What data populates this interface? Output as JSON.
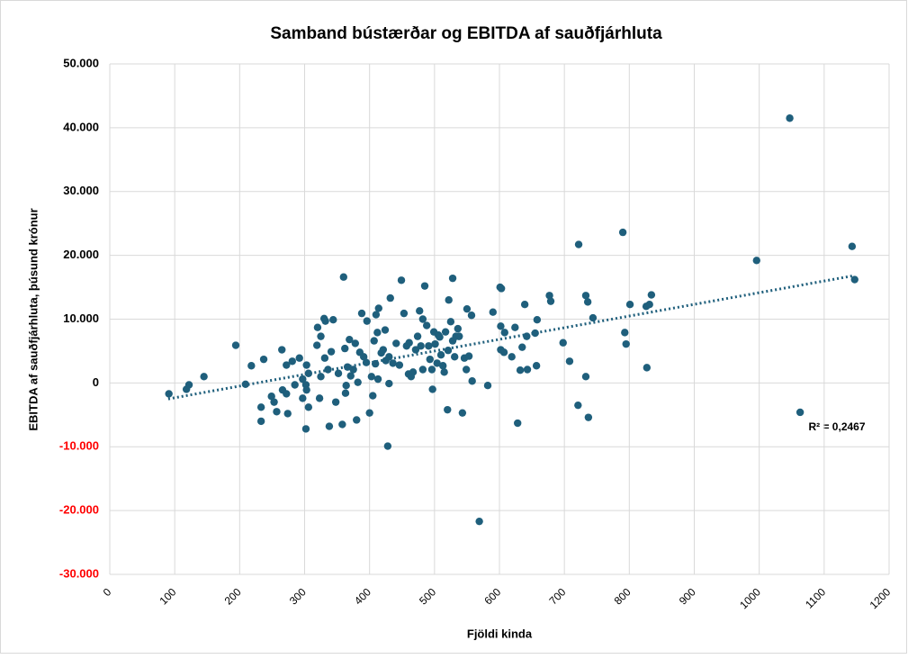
{
  "chart_data": {
    "type": "scatter",
    "title": "Samband bústærðar og EBITDA af sauðfjárhluta",
    "x_label": "Fjöldi kinda",
    "y_label": "EBITDA af sauðfjárhluta, þúsund krónur",
    "annotation": "R² = 0,2467",
    "color": "#1f5f7c",
    "negative_tick_color": "#ff0000",
    "grid": true,
    "xlim": [
      0,
      1200
    ],
    "xticks": [
      0,
      100,
      200,
      300,
      400,
      500,
      600,
      700,
      800,
      900,
      1000,
      1100,
      1200
    ],
    "ylim": [
      -30000,
      50000
    ],
    "yticks": [
      {
        "value": -30000,
        "label": "-30.000"
      },
      {
        "value": -20000,
        "label": "-20.000"
      },
      {
        "value": -10000,
        "label": "-10.000"
      },
      {
        "value": 0,
        "label": "0"
      },
      {
        "value": 10000,
        "label": "10.000"
      },
      {
        "value": 20000,
        "label": "20.000"
      },
      {
        "value": 30000,
        "label": "30.000"
      },
      {
        "value": 40000,
        "label": "40.000"
      },
      {
        "value": 50000,
        "label": "50.000"
      }
    ],
    "trendline": {
      "x": [
        90,
        1145
      ],
      "y": [
        -2500,
        16800
      ]
    },
    "x": [
      91,
      118,
      122,
      145,
      194,
      209,
      218,
      237,
      233,
      233,
      249,
      253,
      257,
      265,
      266,
      272,
      274,
      272,
      281,
      285,
      292,
      297,
      297,
      302,
      302,
      303,
      306,
      306,
      303,
      319,
      320,
      323,
      325,
      325,
      330,
      331,
      332,
      336,
      338,
      341,
      344,
      348,
      352,
      358,
      360,
      362,
      363,
      364,
      366,
      369,
      371,
      375,
      378,
      380,
      382,
      385,
      388,
      391,
      395,
      396,
      400,
      403,
      405,
      407,
      409,
      410,
      412,
      413,
      414,
      418,
      421,
      424,
      425,
      430,
      428,
      430,
      432,
      436,
      441,
      446,
      449,
      453,
      457,
      460,
      461,
      464,
      467,
      471,
      474,
      477,
      479,
      482,
      485,
      488,
      491,
      493,
      496,
      497,
      499,
      501,
      504,
      506,
      508,
      510,
      513,
      515,
      517,
      520,
      521,
      522,
      525,
      528,
      528,
      531,
      533,
      536,
      538,
      543,
      546,
      549,
      550,
      553,
      557,
      558,
      569,
      582,
      590,
      601,
      603,
      602,
      602,
      607,
      608,
      619,
      624,
      628,
      632,
      635,
      639,
      642,
      643,
      655,
      658,
      657,
      677,
      679,
      698,
      708,
      722,
      721,
      733,
      736,
      733,
      737,
      744,
      790,
      793,
      795,
      801,
      827,
      826,
      831,
      834,
      996,
      1047,
      1063,
      1143,
      1147,
      482
    ],
    "y": [
      -1700,
      -1000,
      -300,
      1000,
      5900,
      -200,
      2700,
      3700,
      -3800,
      -6000,
      -2100,
      -3000,
      -4500,
      5200,
      -1100,
      -1700,
      -4800,
      2800,
      3400,
      -300,
      3900,
      600,
      -2400,
      -300,
      -7200,
      -1100,
      -3800,
      1500,
      2800,
      5900,
      8700,
      -2400,
      1000,
      7300,
      10100,
      3900,
      9700,
      2100,
      -6800,
      4900,
      9900,
      -3000,
      1500,
      -6500,
      16600,
      5400,
      -1600,
      -400,
      2500,
      6800,
      1100,
      2100,
      6200,
      -5800,
      100,
      4800,
      10900,
      4100,
      3200,
      9700,
      -4700,
      1000,
      -2000,
      6600,
      3000,
      10700,
      7900,
      600,
      11700,
      4700,
      5200,
      8300,
      3500,
      -100,
      -9900,
      4100,
      13300,
      3100,
      6200,
      2800,
      16100,
      10900,
      5800,
      1400,
      6300,
      1000,
      1700,
      5200,
      7300,
      11300,
      5800,
      2100,
      15200,
      9000,
      5800,
      3700,
      2100,
      -1000,
      8000,
      6100,
      3100,
      7500,
      7200,
      4400,
      2700,
      1700,
      8000,
      -4200,
      5100,
      13000,
      9600,
      16400,
      6600,
      4100,
      7300,
      8500,
      7300,
      -4700,
      3900,
      2100,
      11600,
      4200,
      10600,
      300,
      -21700,
      -400,
      11100,
      15000,
      14800,
      8900,
      5200,
      4800,
      7900,
      4100,
      8700,
      -6300,
      2000,
      5600,
      12300,
      7300,
      2100,
      7800,
      9900,
      2700,
      13700,
      12800,
      6300,
      3400,
      21700,
      -3500,
      13700,
      12700,
      1000,
      -5400,
      10200,
      23600,
      7900,
      6100,
      12300,
      2400,
      12000,
      12300,
      13800,
      19200,
      41500,
      -4600,
      21400,
      16200,
      10000
    ]
  }
}
